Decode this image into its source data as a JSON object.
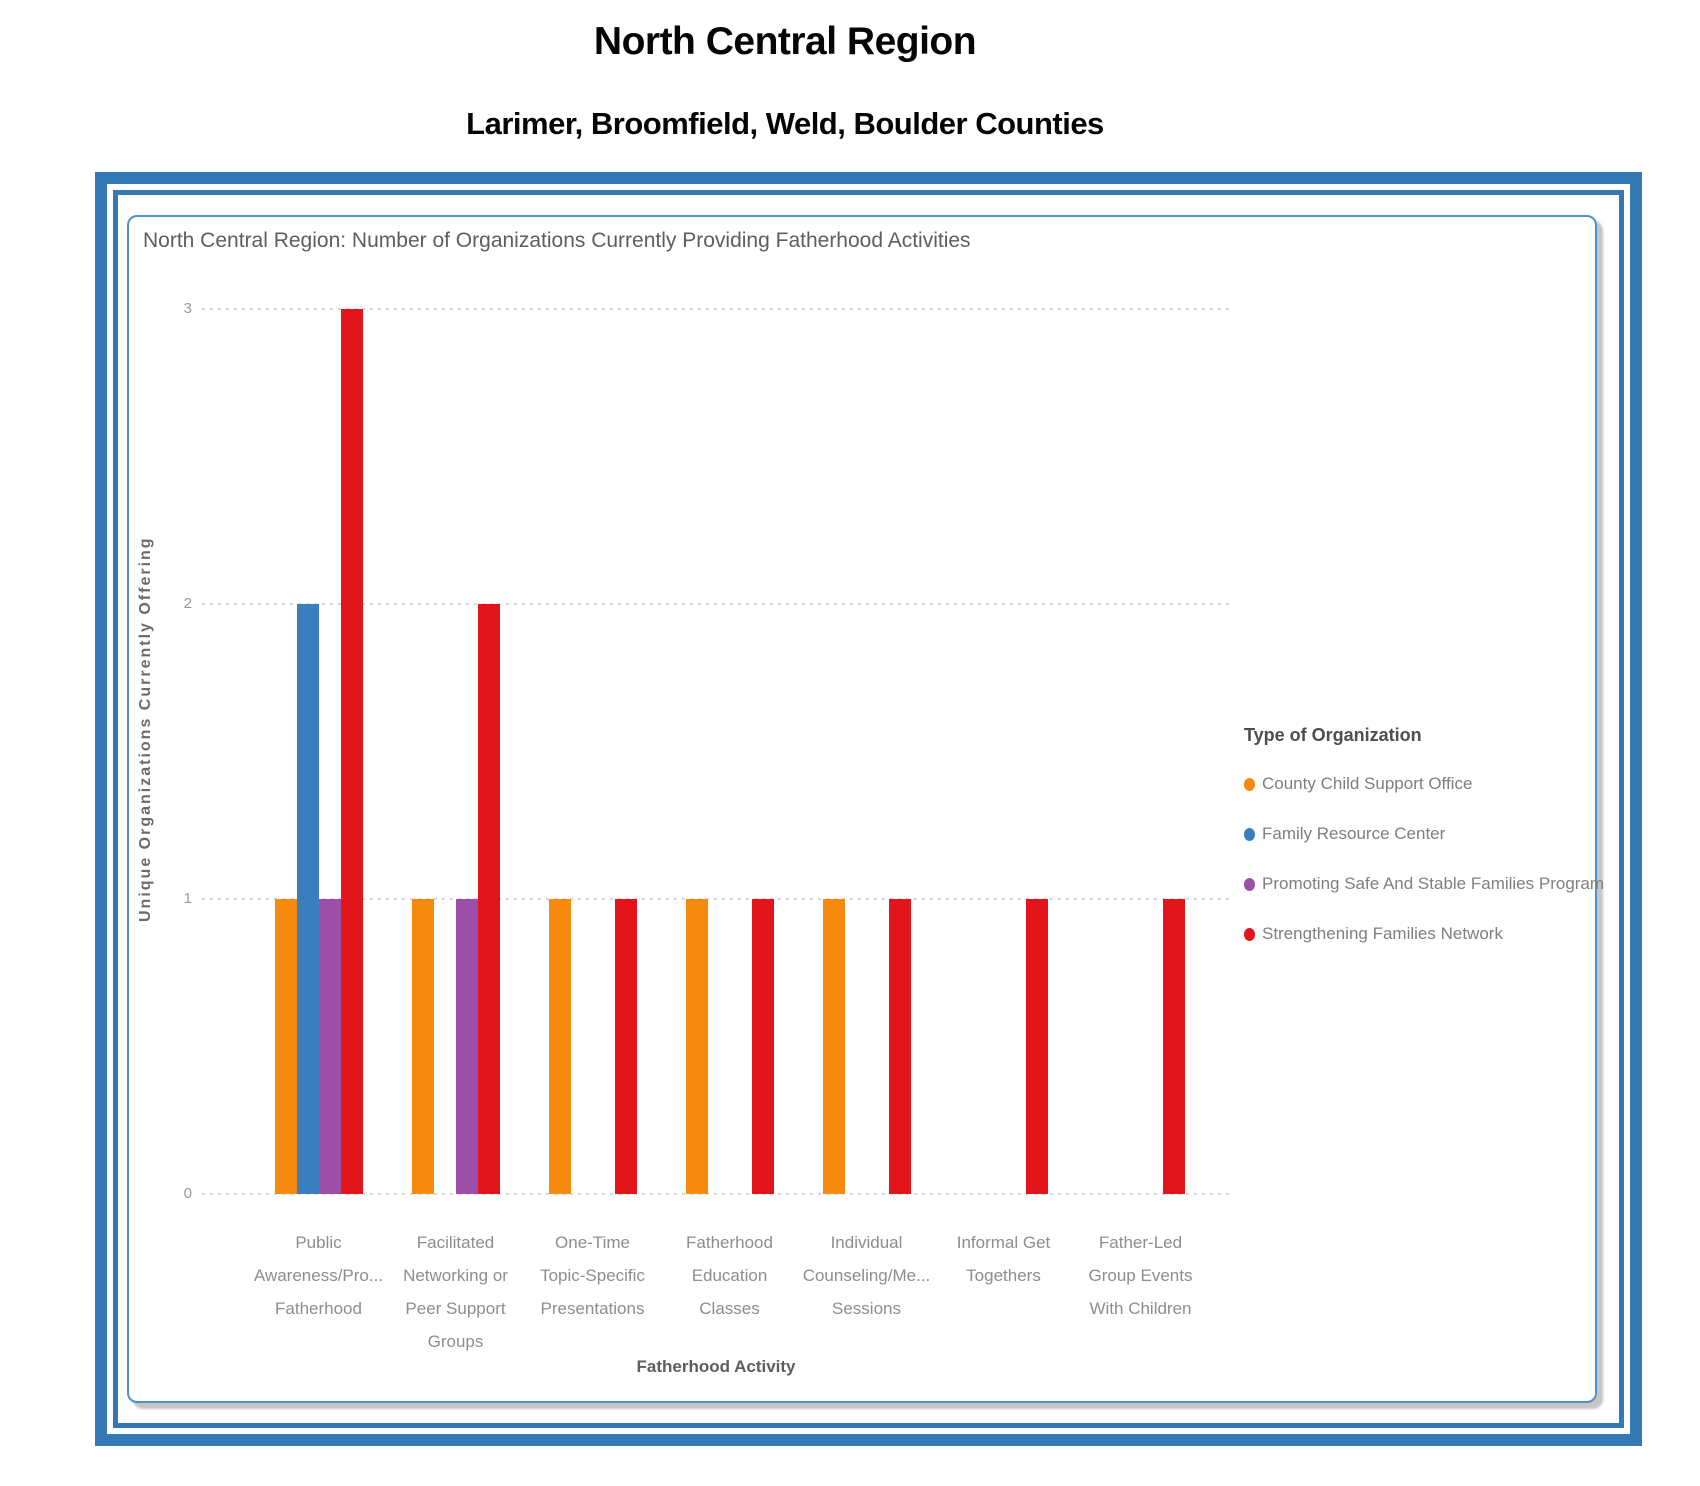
{
  "page": {
    "title": "North Central Region",
    "subtitle": "Larimer, Broomfield, Weld, Boulder Counties"
  },
  "chart": {
    "title": "North Central Region: Number of Organizations Currently Providing Fatherhood Activities",
    "y_axis_label": "Unique Organizations Currently Offering",
    "x_axis_label": "Fatherhood Activity",
    "legend_title": "Type of Organization"
  },
  "chart_data": {
    "type": "bar",
    "title": "North Central Region: Number of Organizations Currently Providing Fatherhood Activities",
    "xlabel": "Fatherhood Activity",
    "ylabel": "Unique Organizations Currently Offering",
    "ylim": [
      0,
      3
    ],
    "yticks": [
      0,
      1,
      2,
      3
    ],
    "grid": "horizontal-dotted",
    "legend_position": "right",
    "legend_title": "Type of Organization",
    "categories": [
      "Public Awareness/Pro... Fatherhood",
      "Facilitated Networking or Peer Support Groups",
      "One-Time Topic-Specific Presentations",
      "Fatherhood Education Classes",
      "Individual Counseling/Me... Sessions",
      "Informal Get Togethers",
      "Father-Led Group Events With Children"
    ],
    "category_label_lines": [
      [
        "Public",
        "Awareness/Pro...",
        "Fatherhood"
      ],
      [
        "Facilitated",
        "Networking or",
        "Peer Support",
        "Groups"
      ],
      [
        "One-Time",
        "Topic-Specific",
        "Presentations"
      ],
      [
        "Fatherhood",
        "Education",
        "Classes"
      ],
      [
        "Individual",
        "Counseling/Me...",
        "Sessions"
      ],
      [
        "Informal Get",
        "Togethers"
      ],
      [
        "Father-Led",
        "Group Events",
        "With Children"
      ]
    ],
    "series": [
      {
        "name": "County Child Support Office",
        "color": "#F68A0E",
        "values": [
          1,
          1,
          1,
          1,
          1,
          0,
          0
        ]
      },
      {
        "name": "Family Resource Center",
        "color": "#3B7EBD",
        "values": [
          2,
          0,
          0,
          0,
          0,
          0,
          0
        ]
      },
      {
        "name": "Promoting Safe And Stable Families Program",
        "color": "#9C4FA6",
        "values": [
          1,
          1,
          0,
          0,
          0,
          0,
          0
        ]
      },
      {
        "name": "Strengthening Families Network",
        "color": "#E2141C",
        "values": [
          3,
          2,
          1,
          1,
          1,
          1,
          1
        ]
      }
    ]
  },
  "colors": {
    "frame_blue": "#3478B6",
    "panel_border": "#4C92C6",
    "gridline": "#D7D7D7"
  }
}
